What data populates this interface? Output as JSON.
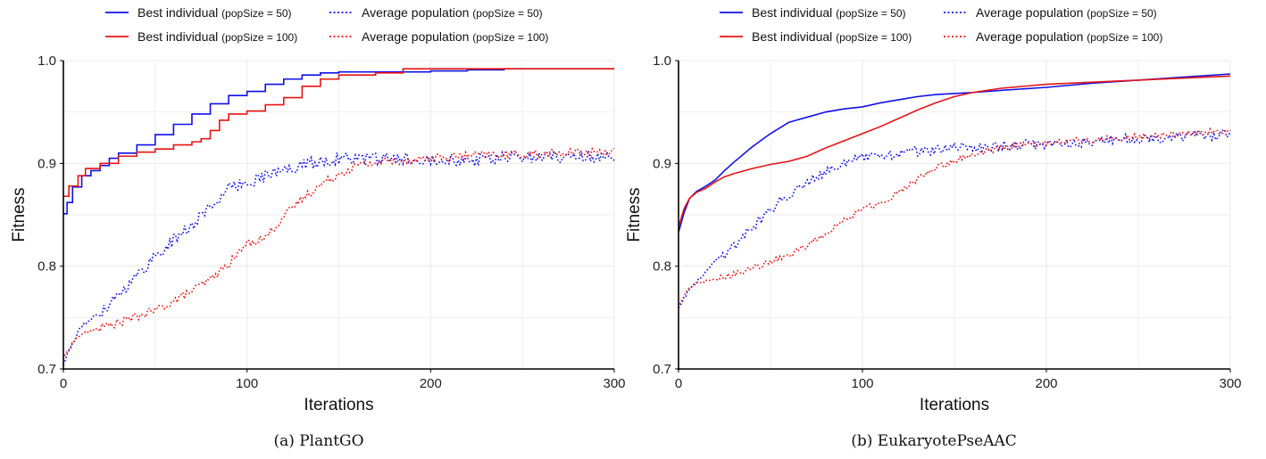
{
  "colors": {
    "blue": "#1010e6",
    "red": "#e61414",
    "grid": "#e8e8e8",
    "axis": "#000000"
  },
  "legend": [
    {
      "main": "Best individual",
      "sub": "(popSize = 50)",
      "color": "blue",
      "dash": "solid"
    },
    {
      "main": "Average population",
      "sub": "(popSize = 50)",
      "color": "blue",
      "dash": "dotted"
    },
    {
      "main": "Best individual",
      "sub": "(popSize = 100)",
      "color": "red",
      "dash": "solid"
    },
    {
      "main": "Average population",
      "sub": "(popSize = 100)",
      "color": "red",
      "dash": "dotted"
    }
  ],
  "chart_data": [
    {
      "type": "line",
      "caption": "(a) PlantGO",
      "xlabel": "Iterations",
      "ylabel": "Fitness",
      "xlim": [
        0,
        300
      ],
      "ylim": [
        0.7,
        1.0
      ],
      "xticks": [
        "0",
        "100",
        "200",
        "300"
      ],
      "yticks": [
        "0.7",
        "0.8",
        "0.9",
        "1.0"
      ],
      "grid": true,
      "series": [
        {
          "name": "Best individual (popSize = 50)",
          "color": "blue",
          "style": "solid",
          "step": true,
          "points": [
            [
              0,
              0.851
            ],
            [
              2,
              0.862
            ],
            [
              5,
              0.877
            ],
            [
              10,
              0.888
            ],
            [
              15,
              0.893
            ],
            [
              20,
              0.898
            ],
            [
              25,
              0.905
            ],
            [
              30,
              0.91
            ],
            [
              40,
              0.918
            ],
            [
              50,
              0.928
            ],
            [
              60,
              0.938
            ],
            [
              70,
              0.948
            ],
            [
              80,
              0.958
            ],
            [
              90,
              0.966
            ],
            [
              100,
              0.97
            ],
            [
              110,
              0.977
            ],
            [
              120,
              0.982
            ],
            [
              130,
              0.986
            ],
            [
              140,
              0.988
            ],
            [
              150,
              0.989
            ],
            [
              180,
              0.989
            ],
            [
              200,
              0.99
            ],
            [
              220,
              0.991
            ],
            [
              240,
              0.992
            ],
            [
              300,
              0.992
            ]
          ]
        },
        {
          "name": "Best individual (popSize = 100)",
          "color": "red",
          "style": "solid",
          "step": true,
          "points": [
            [
              0,
              0.868
            ],
            [
              3,
              0.878
            ],
            [
              8,
              0.888
            ],
            [
              12,
              0.895
            ],
            [
              20,
              0.9
            ],
            [
              30,
              0.907
            ],
            [
              40,
              0.911
            ],
            [
              50,
              0.914
            ],
            [
              60,
              0.918
            ],
            [
              70,
              0.921
            ],
            [
              75,
              0.924
            ],
            [
              80,
              0.932
            ],
            [
              85,
              0.942
            ],
            [
              90,
              0.948
            ],
            [
              100,
              0.951
            ],
            [
              110,
              0.957
            ],
            [
              120,
              0.964
            ],
            [
              130,
              0.975
            ],
            [
              140,
              0.982
            ],
            [
              150,
              0.986
            ],
            [
              170,
              0.988
            ],
            [
              185,
              0.992
            ],
            [
              220,
              0.992
            ],
            [
              300,
              0.992
            ]
          ]
        },
        {
          "name": "Average population (popSize = 50)",
          "color": "blue",
          "style": "dotted",
          "noise": 0.006,
          "points": [
            [
              0,
              0.705
            ],
            [
              5,
              0.725
            ],
            [
              10,
              0.742
            ],
            [
              20,
              0.755
            ],
            [
              30,
              0.773
            ],
            [
              40,
              0.79
            ],
            [
              50,
              0.81
            ],
            [
              60,
              0.825
            ],
            [
              70,
              0.84
            ],
            [
              80,
              0.858
            ],
            [
              90,
              0.875
            ],
            [
              100,
              0.882
            ],
            [
              110,
              0.888
            ],
            [
              120,
              0.893
            ],
            [
              130,
              0.898
            ],
            [
              140,
              0.902
            ],
            [
              150,
              0.905
            ],
            [
              175,
              0.904
            ],
            [
              200,
              0.905
            ],
            [
              225,
              0.903
            ],
            [
              250,
              0.906
            ],
            [
              275,
              0.907
            ],
            [
              300,
              0.906
            ]
          ]
        },
        {
          "name": "Average population (popSize = 100)",
          "color": "red",
          "style": "dotted",
          "noise": 0.004,
          "points": [
            [
              0,
              0.71
            ],
            [
              5,
              0.726
            ],
            [
              10,
              0.734
            ],
            [
              20,
              0.74
            ],
            [
              30,
              0.745
            ],
            [
              40,
              0.751
            ],
            [
              50,
              0.757
            ],
            [
              60,
              0.766
            ],
            [
              70,
              0.776
            ],
            [
              80,
              0.787
            ],
            [
              90,
              0.802
            ],
            [
              100,
              0.822
            ],
            [
              110,
              0.828
            ],
            [
              120,
              0.848
            ],
            [
              130,
              0.866
            ],
            [
              140,
              0.879
            ],
            [
              150,
              0.89
            ],
            [
              160,
              0.898
            ],
            [
              175,
              0.902
            ],
            [
              200,
              0.905
            ],
            [
              225,
              0.908
            ],
            [
              250,
              0.909
            ],
            [
              275,
              0.91
            ],
            [
              300,
              0.912
            ]
          ]
        }
      ]
    },
    {
      "type": "line",
      "caption": "(b) EukaryotePseAAC",
      "xlabel": "Iterations",
      "ylabel": "Fitness",
      "xlim": [
        0,
        300
      ],
      "ylim": [
        0.7,
        1.0
      ],
      "xticks": [
        "0",
        "100",
        "200",
        "300"
      ],
      "yticks": [
        "0.7",
        "0.8",
        "0.9",
        "1.0"
      ],
      "grid": true,
      "series": [
        {
          "name": "Best individual (popSize = 50)",
          "color": "blue",
          "style": "solid",
          "step": false,
          "points": [
            [
              0,
              0.833
            ],
            [
              3,
              0.852
            ],
            [
              6,
              0.866
            ],
            [
              10,
              0.873
            ],
            [
              15,
              0.878
            ],
            [
              20,
              0.884
            ],
            [
              25,
              0.893
            ],
            [
              30,
              0.901
            ],
            [
              40,
              0.916
            ],
            [
              50,
              0.929
            ],
            [
              60,
              0.94
            ],
            [
              70,
              0.945
            ],
            [
              80,
              0.95
            ],
            [
              90,
              0.953
            ],
            [
              100,
              0.955
            ],
            [
              110,
              0.959
            ],
            [
              120,
              0.962
            ],
            [
              130,
              0.965
            ],
            [
              140,
              0.967
            ],
            [
              150,
              0.968
            ],
            [
              160,
              0.969
            ],
            [
              175,
              0.971
            ],
            [
              200,
              0.974
            ],
            [
              225,
              0.978
            ],
            [
              250,
              0.981
            ],
            [
              275,
              0.984
            ],
            [
              300,
              0.987
            ]
          ]
        },
        {
          "name": "Best individual (popSize = 100)",
          "color": "red",
          "style": "solid",
          "step": false,
          "points": [
            [
              0,
              0.838
            ],
            [
              3,
              0.856
            ],
            [
              6,
              0.866
            ],
            [
              10,
              0.872
            ],
            [
              15,
              0.876
            ],
            [
              20,
              0.882
            ],
            [
              25,
              0.887
            ],
            [
              30,
              0.89
            ],
            [
              40,
              0.895
            ],
            [
              50,
              0.899
            ],
            [
              60,
              0.902
            ],
            [
              70,
              0.907
            ],
            [
              80,
              0.915
            ],
            [
              90,
              0.922
            ],
            [
              100,
              0.929
            ],
            [
              110,
              0.936
            ],
            [
              120,
              0.944
            ],
            [
              130,
              0.952
            ],
            [
              140,
              0.959
            ],
            [
              150,
              0.965
            ],
            [
              160,
              0.969
            ],
            [
              175,
              0.973
            ],
            [
              200,
              0.977
            ],
            [
              225,
              0.979
            ],
            [
              250,
              0.981
            ],
            [
              275,
              0.983
            ],
            [
              300,
              0.985
            ]
          ]
        },
        {
          "name": "Average population (popSize = 50)",
          "color": "blue",
          "style": "dotted",
          "noise": 0.005,
          "points": [
            [
              0,
              0.76
            ],
            [
              5,
              0.775
            ],
            [
              10,
              0.785
            ],
            [
              20,
              0.805
            ],
            [
              30,
              0.82
            ],
            [
              40,
              0.838
            ],
            [
              50,
              0.855
            ],
            [
              60,
              0.87
            ],
            [
              70,
              0.883
            ],
            [
              80,
              0.893
            ],
            [
              90,
              0.9
            ],
            [
              100,
              0.905
            ],
            [
              110,
              0.907
            ],
            [
              120,
              0.91
            ],
            [
              130,
              0.912
            ],
            [
              140,
              0.913
            ],
            [
              150,
              0.915
            ],
            [
              175,
              0.917
            ],
            [
              200,
              0.919
            ],
            [
              225,
              0.921
            ],
            [
              250,
              0.924
            ],
            [
              275,
              0.926
            ],
            [
              300,
              0.928
            ]
          ]
        },
        {
          "name": "Average population (popSize = 100)",
          "color": "red",
          "style": "dotted",
          "noise": 0.003,
          "points": [
            [
              0,
              0.76
            ],
            [
              5,
              0.778
            ],
            [
              10,
              0.784
            ],
            [
              20,
              0.787
            ],
            [
              30,
              0.792
            ],
            [
              40,
              0.798
            ],
            [
              50,
              0.804
            ],
            [
              60,
              0.811
            ],
            [
              70,
              0.82
            ],
            [
              80,
              0.832
            ],
            [
              90,
              0.845
            ],
            [
              100,
              0.855
            ],
            [
              110,
              0.862
            ],
            [
              120,
              0.872
            ],
            [
              130,
              0.885
            ],
            [
              140,
              0.895
            ],
            [
              150,
              0.903
            ],
            [
              160,
              0.909
            ],
            [
              175,
              0.915
            ],
            [
              200,
              0.92
            ],
            [
              225,
              0.923
            ],
            [
              250,
              0.926
            ],
            [
              275,
              0.929
            ],
            [
              300,
              0.932
            ]
          ]
        }
      ]
    }
  ]
}
